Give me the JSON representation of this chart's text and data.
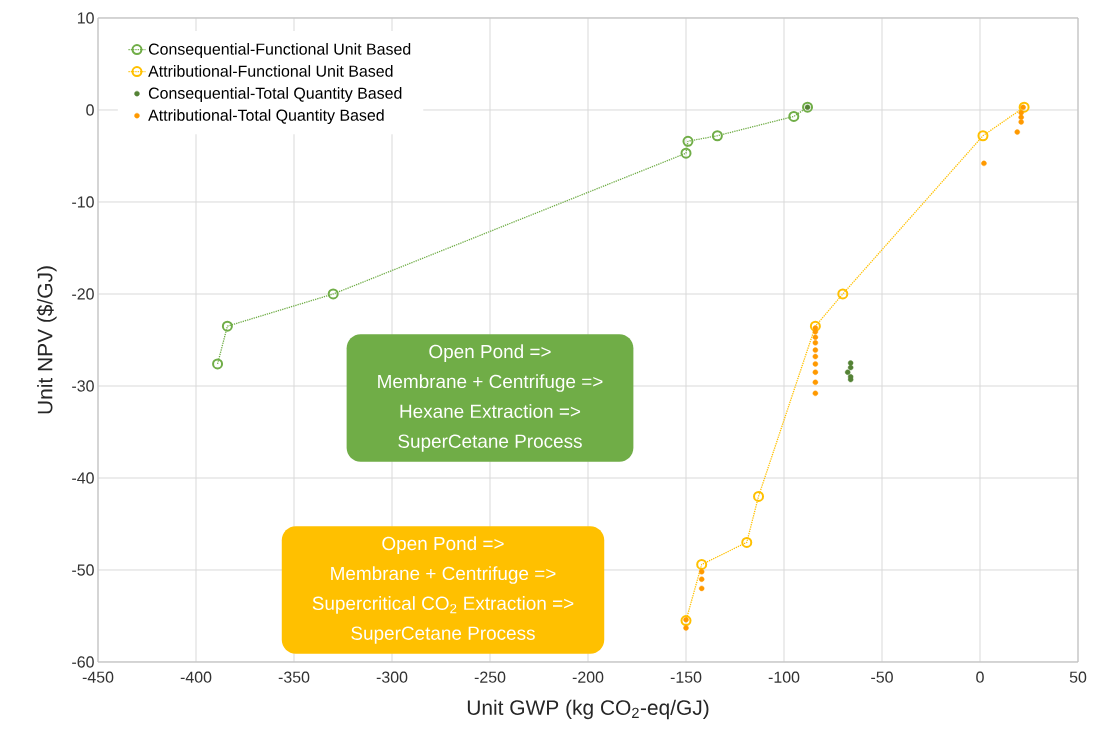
{
  "chart_data": {
    "type": "line",
    "xlabel": "Unit GWP (kg CO$_{2}$-eq/GJ)",
    "ylabel": "Unit NPV ($/GJ)",
    "xlim": [
      -450,
      50
    ],
    "xticks": [
      -450,
      -400,
      -350,
      -300,
      -250,
      -200,
      -150,
      -100,
      -50,
      0,
      50
    ],
    "ylim": [
      -60,
      10
    ],
    "yticks": [
      -60,
      -50,
      -40,
      -30,
      -20,
      -10,
      0,
      10
    ],
    "grid": true,
    "legend": "top left",
    "line_style": "dotted",
    "marker": "circle",
    "series": [
      {
        "name": "Consequential-Functional Unit Based",
        "color": "#70ad47",
        "x": [
          -389,
          -384,
          -330,
          -150,
          -149,
          -134,
          -95,
          -88
        ],
        "values": [
          -27.6,
          -23.5,
          -20.0,
          -4.7,
          -3.4,
          -2.8,
          -0.7,
          0.3
        ]
      },
      {
        "name": "Attributional-Functional Unit Based",
        "color": "#ffc000",
        "x": [
          -150,
          -142,
          -119,
          -113,
          -84,
          -70,
          1.5,
          22.5
        ],
        "values": [
          -55.5,
          -49.4,
          -47.0,
          -42.0,
          -23.5,
          -20.0,
          -2.8,
          0.3
        ]
      },
      {
        "name": "Consequential-Total Quantity Based",
        "type": "scatter",
        "color": "#548235",
        "x": [
          -88,
          -66,
          -66,
          -67.5,
          -66,
          -66
        ],
        "values": [
          0.3,
          -27.5,
          -28.0,
          -28.5,
          -29.0,
          -29.3
        ]
      },
      {
        "name": "Attributional-Total Quantity Based",
        "type": "scatter",
        "color": "#ff9900",
        "x": [
          -84,
          -84,
          -84,
          -84,
          -84,
          -84,
          -84,
          -84,
          -84,
          -84,
          -142,
          -142,
          -142,
          -150,
          -150,
          22,
          21,
          21,
          21,
          19,
          2
        ],
        "values": [
          -23.7,
          -24.1,
          -24.7,
          -25.3,
          -26.1,
          -26.8,
          -27.6,
          -28.5,
          -29.6,
          -30.8,
          -50.2,
          -51.0,
          -52.0,
          -55.4,
          -56.3,
          0.3,
          -0.3,
          -0.8,
          -1.3,
          -2.4,
          -5.8
        ]
      }
    ],
    "annotations": [
      "Open Pond =>",
      "Membrane + Centrifuge =>",
      "Hexane Extraction =>",
      "SuperCetane Process",
      "Open Pond =>",
      "Membrane + Centrifuge =>",
      "Supercritical CO$_{2}$ Extraction =>",
      "SuperCetane Process"
    ]
  }
}
